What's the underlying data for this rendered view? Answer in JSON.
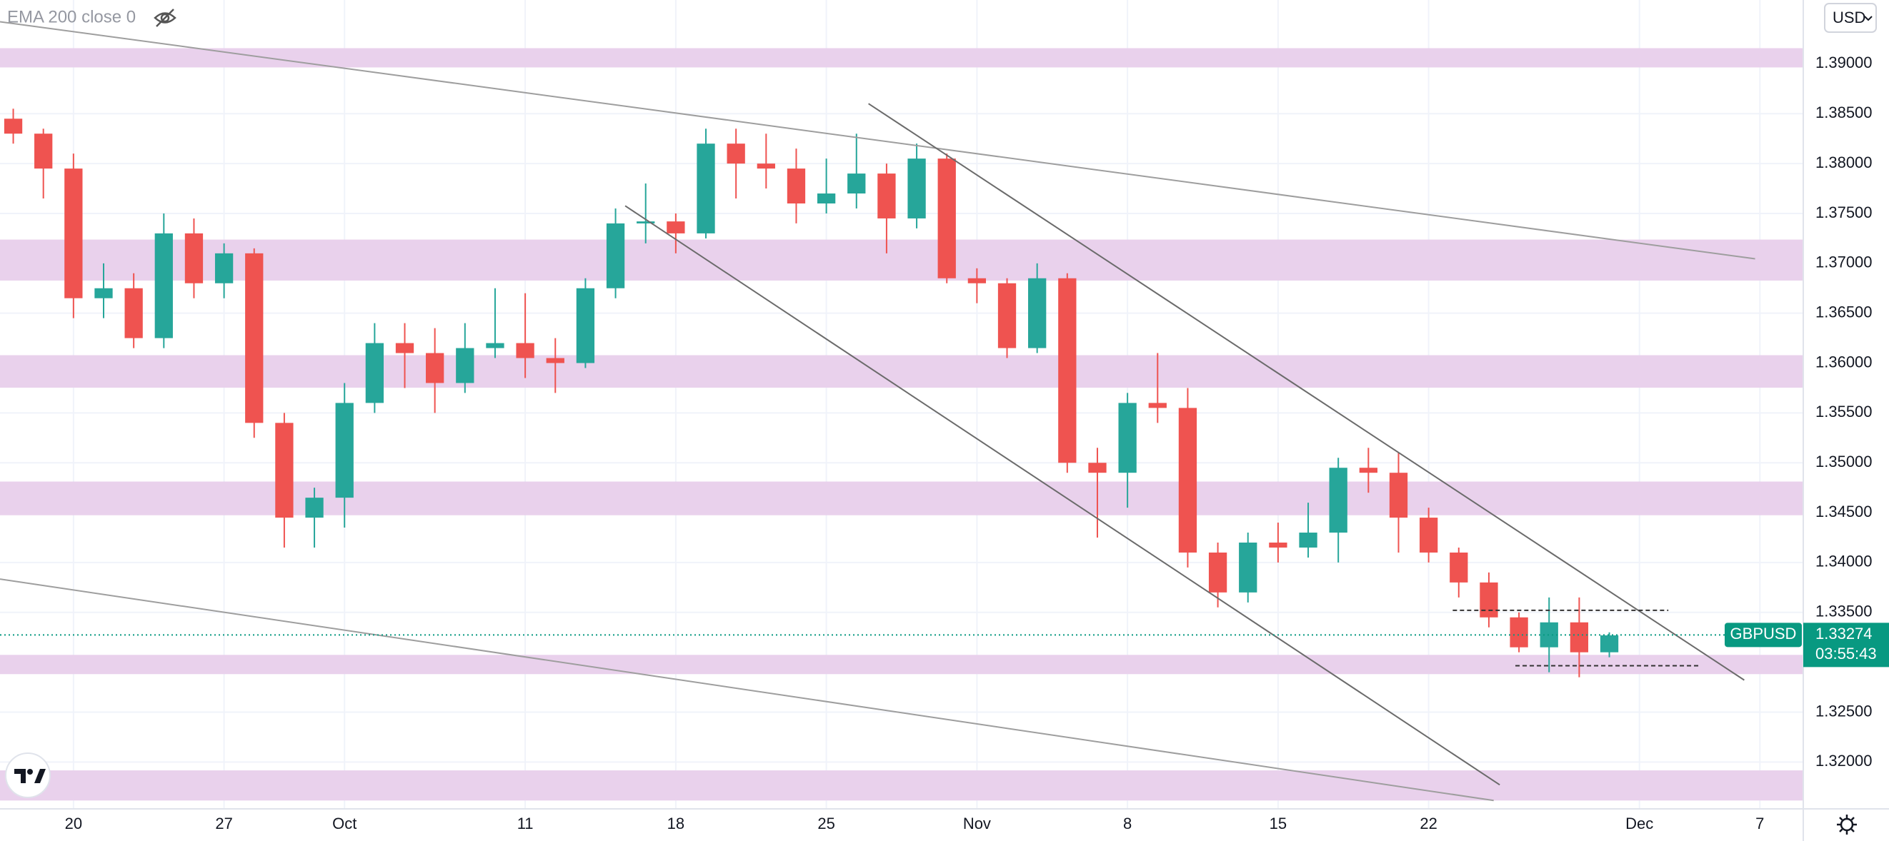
{
  "chart_data": {
    "type": "candlestick",
    "indicator": "EMA 200 close 0",
    "currency": "USD",
    "symbol": "GBPUSD",
    "last_price": 1.33274,
    "countdown": "03:55:43",
    "up_color": "#26a69a",
    "down_color": "#ef5350",
    "grid": true,
    "xlim": [
      -2.44,
      57.44
    ],
    "ylim": [
      1.3153,
      1.3964
    ],
    "xticks": [
      {
        "value": 0,
        "label": "20"
      },
      {
        "value": 5,
        "label": "27"
      },
      {
        "value": 9,
        "label": "Oct"
      },
      {
        "value": 15,
        "label": "11"
      },
      {
        "value": 20,
        "label": "18"
      },
      {
        "value": 25,
        "label": "25"
      },
      {
        "value": 30,
        "label": "Nov"
      },
      {
        "value": 35,
        "label": "8"
      },
      {
        "value": 40,
        "label": "15"
      },
      {
        "value": 45,
        "label": "22"
      },
      {
        "value": 52,
        "label": "Dec"
      },
      {
        "value": 56,
        "label": "7"
      }
    ],
    "yticks": [
      {
        "value": 1.32,
        "label": "1.32000"
      },
      {
        "value": 1.325,
        "label": "1.32500"
      },
      {
        "value": 1.33,
        "label": "1.33000"
      },
      {
        "value": 1.335,
        "label": "1.33500"
      },
      {
        "value": 1.34,
        "label": "1.34000"
      },
      {
        "value": 1.345,
        "label": "1.34500"
      },
      {
        "value": 1.35,
        "label": "1.35000"
      },
      {
        "value": 1.355,
        "label": "1.35500"
      },
      {
        "value": 1.36,
        "label": "1.36000"
      },
      {
        "value": 1.365,
        "label": "1.36500"
      },
      {
        "value": 1.37,
        "label": "1.37000"
      },
      {
        "value": 1.375,
        "label": "1.37500"
      },
      {
        "value": 1.38,
        "label": "1.38000"
      },
      {
        "value": 1.385,
        "label": "1.38500"
      },
      {
        "value": 1.39,
        "label": "1.39000"
      }
    ],
    "x": [
      -2,
      -1,
      0,
      1,
      2,
      3,
      4,
      5,
      6,
      7,
      8,
      9,
      10,
      11,
      12,
      13,
      14,
      15,
      16,
      17,
      18,
      19,
      20,
      21,
      22,
      23,
      24,
      25,
      26,
      27,
      28,
      29,
      30,
      31,
      32,
      33,
      34,
      35,
      36,
      37,
      38,
      39,
      40,
      41,
      42,
      43,
      44,
      45,
      46,
      47,
      48,
      49,
      50,
      51
    ],
    "open": [
      1.3845,
      1.383,
      1.3795,
      1.3665,
      1.3675,
      1.3625,
      1.373,
      1.368,
      1.371,
      1.354,
      1.3445,
      1.3465,
      1.356,
      1.362,
      1.361,
      1.358,
      1.3615,
      1.362,
      1.3605,
      1.36,
      1.3675,
      1.374,
      1.3742,
      1.373,
      1.382,
      1.38,
      1.3795,
      1.376,
      1.377,
      1.379,
      1.3745,
      1.3805,
      1.3685,
      1.368,
      1.3615,
      1.3685,
      1.35,
      1.349,
      1.356,
      1.3555,
      1.341,
      1.337,
      1.342,
      1.3415,
      1.343,
      1.3495,
      1.349,
      1.3445,
      1.341,
      1.338,
      1.3345,
      1.3315,
      1.334,
      1.331
    ],
    "high": [
      1.3855,
      1.3835,
      1.381,
      1.37,
      1.369,
      1.375,
      1.3745,
      1.372,
      1.3715,
      1.355,
      1.3475,
      1.358,
      1.364,
      1.364,
      1.3635,
      1.364,
      1.3675,
      1.367,
      1.3625,
      1.3685,
      1.3755,
      1.378,
      1.375,
      1.3835,
      1.3835,
      1.383,
      1.3815,
      1.3805,
      1.383,
      1.38,
      1.382,
      1.381,
      1.3695,
      1.3685,
      1.37,
      1.369,
      1.3515,
      1.357,
      1.361,
      1.3575,
      1.342,
      1.343,
      1.344,
      1.346,
      1.3505,
      1.3515,
      1.351,
      1.3455,
      1.3415,
      1.339,
      1.335,
      1.3365,
      1.3365,
      1.333
    ],
    "low": [
      1.382,
      1.3765,
      1.3645,
      1.3645,
      1.3615,
      1.3615,
      1.3665,
      1.3665,
      1.3525,
      1.3415,
      1.3415,
      1.3435,
      1.355,
      1.3575,
      1.355,
      1.357,
      1.3605,
      1.3585,
      1.357,
      1.3595,
      1.3665,
      1.372,
      1.371,
      1.3725,
      1.3765,
      1.3775,
      1.374,
      1.375,
      1.3755,
      1.371,
      1.3735,
      1.368,
      1.366,
      1.3605,
      1.361,
      1.349,
      1.3425,
      1.3455,
      1.354,
      1.3395,
      1.3355,
      1.336,
      1.34,
      1.3405,
      1.34,
      1.347,
      1.341,
      1.34,
      1.3365,
      1.3335,
      1.331,
      1.329,
      1.3285,
      1.3305
    ],
    "close": [
      1.383,
      1.3795,
      1.3665,
      1.3675,
      1.3625,
      1.373,
      1.368,
      1.371,
      1.354,
      1.3445,
      1.3465,
      1.356,
      1.362,
      1.361,
      1.358,
      1.3615,
      1.362,
      1.3605,
      1.36,
      1.3675,
      1.374,
      1.3742,
      1.373,
      1.382,
      1.38,
      1.3795,
      1.376,
      1.377,
      1.379,
      1.3745,
      1.3805,
      1.3685,
      1.368,
      1.3615,
      1.3685,
      1.35,
      1.349,
      1.356,
      1.3555,
      1.341,
      1.337,
      1.342,
      1.3415,
      1.343,
      1.3495,
      1.349,
      1.3445,
      1.341,
      1.338,
      1.3345,
      1.3315,
      1.334,
      1.331,
      1.3327
    ],
    "zone_color": "#e9d1ec",
    "zones": [
      [
        1.38964,
        1.39157
      ],
      [
        1.36827,
        1.37238
      ],
      [
        1.35753,
        1.36079
      ],
      [
        1.34474,
        1.34812
      ],
      [
        1.32881,
        1.33074
      ],
      [
        1.31614,
        1.31916
      ]
    ],
    "trendlines": [
      {
        "x": [
          -2.44,
          55.84
        ],
        "y": [
          1.39422,
          1.37045
        ],
        "color": "#9e9e9e",
        "style": "solid"
      },
      {
        "x": [
          -2.44,
          47.16
        ],
        "y": [
          1.33834,
          1.31614
        ],
        "color": "#9e9e9e",
        "style": "solid"
      },
      {
        "x": [
          18.32,
          47.36
        ],
        "y": [
          1.37576,
          1.31771
        ],
        "color": "#6b6b6b",
        "style": "solid"
      },
      {
        "x": [
          26.4,
          55.48
        ],
        "y": [
          1.38601,
          1.32821
        ],
        "color": "#6b6b6b",
        "style": "solid"
      },
      {
        "x": [
          45.8,
          52.96
        ],
        "y": [
          1.33521,
          1.33521
        ],
        "color": "#333333",
        "style": "dashed"
      },
      {
        "x": [
          47.88,
          54.04
        ],
        "y": [
          1.32965,
          1.32965
        ],
        "color": "#333333",
        "style": "dashed"
      }
    ]
  }
}
